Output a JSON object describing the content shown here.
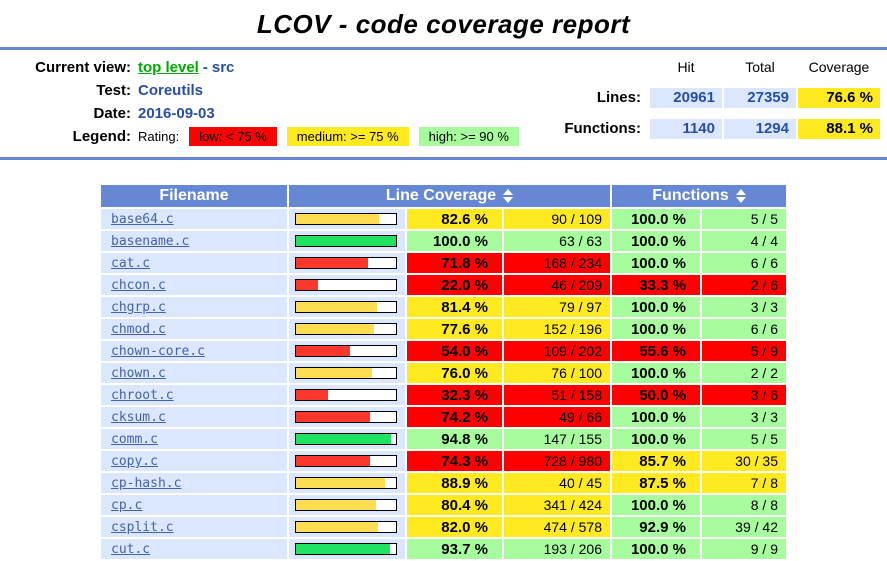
{
  "title": "LCOV - code coverage report",
  "header": {
    "current_view": {
      "label": "Current view:",
      "link": "top level",
      "separator": "-",
      "current": "src"
    },
    "test": {
      "label": "Test:",
      "value": "Coreutils"
    },
    "date": {
      "label": "Date:",
      "value": "2016-09-03"
    },
    "legend": {
      "label": "Legend:",
      "rating_label": "Rating:",
      "items": [
        {
          "text": "low: < 75 %",
          "level": "low",
          "color": "#FF0000"
        },
        {
          "text": "medium: >= 75 %",
          "level": "medium",
          "color": "#FFEA20"
        },
        {
          "text": "high: >= 90 %",
          "level": "high",
          "color": "#A7FC9D"
        }
      ]
    },
    "summary": {
      "col_hit": "Hit",
      "col_total": "Total",
      "col_coverage": "Coverage",
      "lines": {
        "label": "Lines:",
        "hit": "20961",
        "total": "27359",
        "coverage": "76.6 %"
      },
      "functions": {
        "label": "Functions:",
        "hit": "1140",
        "total": "1294",
        "coverage": "88.1 %"
      }
    }
  },
  "table": {
    "columns": {
      "filename": "Filename",
      "line_coverage": "Line Coverage",
      "functions": "Functions"
    },
    "thresholds": {
      "medium": 75,
      "high": 90
    },
    "rows": [
      {
        "file": "base64.c",
        "line_pct": 82.6,
        "line_pct_text": "82.6 %",
        "line_ratio": "90 / 109",
        "func_pct": 100.0,
        "func_pct_text": "100.0 %",
        "func_ratio": "5 / 5"
      },
      {
        "file": "basename.c",
        "line_pct": 100.0,
        "line_pct_text": "100.0 %",
        "line_ratio": "63 / 63",
        "func_pct": 100.0,
        "func_pct_text": "100.0 %",
        "func_ratio": "4 / 4"
      },
      {
        "file": "cat.c",
        "line_pct": 71.8,
        "line_pct_text": "71.8 %",
        "line_ratio": "168 / 234",
        "func_pct": 100.0,
        "func_pct_text": "100.0 %",
        "func_ratio": "6 / 6"
      },
      {
        "file": "chcon.c",
        "line_pct": 22.0,
        "line_pct_text": "22.0 %",
        "line_ratio": "46 / 209",
        "func_pct": 33.3,
        "func_pct_text": "33.3 %",
        "func_ratio": "2 / 6"
      },
      {
        "file": "chgrp.c",
        "line_pct": 81.4,
        "line_pct_text": "81.4 %",
        "line_ratio": "79 / 97",
        "func_pct": 100.0,
        "func_pct_text": "100.0 %",
        "func_ratio": "3 / 3"
      },
      {
        "file": "chmod.c",
        "line_pct": 77.6,
        "line_pct_text": "77.6 %",
        "line_ratio": "152 / 196",
        "func_pct": 100.0,
        "func_pct_text": "100.0 %",
        "func_ratio": "6 / 6"
      },
      {
        "file": "chown-core.c",
        "line_pct": 54.0,
        "line_pct_text": "54.0 %",
        "line_ratio": "109 / 202",
        "func_pct": 55.6,
        "func_pct_text": "55.6 %",
        "func_ratio": "5 / 9"
      },
      {
        "file": "chown.c",
        "line_pct": 76.0,
        "line_pct_text": "76.0 %",
        "line_ratio": "76 / 100",
        "func_pct": 100.0,
        "func_pct_text": "100.0 %",
        "func_ratio": "2 / 2"
      },
      {
        "file": "chroot.c",
        "line_pct": 32.3,
        "line_pct_text": "32.3 %",
        "line_ratio": "51 / 158",
        "func_pct": 50.0,
        "func_pct_text": "50.0 %",
        "func_ratio": "3 / 6"
      },
      {
        "file": "cksum.c",
        "line_pct": 74.2,
        "line_pct_text": "74.2 %",
        "line_ratio": "49 / 66",
        "func_pct": 100.0,
        "func_pct_text": "100.0 %",
        "func_ratio": "3 / 3"
      },
      {
        "file": "comm.c",
        "line_pct": 94.8,
        "line_pct_text": "94.8 %",
        "line_ratio": "147 / 155",
        "func_pct": 100.0,
        "func_pct_text": "100.0 %",
        "func_ratio": "5 / 5"
      },
      {
        "file": "copy.c",
        "line_pct": 74.3,
        "line_pct_text": "74.3 %",
        "line_ratio": "728 / 980",
        "func_pct": 85.7,
        "func_pct_text": "85.7 %",
        "func_ratio": "30 / 35"
      },
      {
        "file": "cp-hash.c",
        "line_pct": 88.9,
        "line_pct_text": "88.9 %",
        "line_ratio": "40 / 45",
        "func_pct": 87.5,
        "func_pct_text": "87.5 %",
        "func_ratio": "7 / 8"
      },
      {
        "file": "cp.c",
        "line_pct": 80.4,
        "line_pct_text": "80.4 %",
        "line_ratio": "341 / 424",
        "func_pct": 100.0,
        "func_pct_text": "100.0 %",
        "func_ratio": "8 / 8"
      },
      {
        "file": "csplit.c",
        "line_pct": 82.0,
        "line_pct_text": "82.0 %",
        "line_ratio": "474 / 578",
        "func_pct": 92.9,
        "func_pct_text": "92.9 %",
        "func_ratio": "39 / 42"
      },
      {
        "file": "cut.c",
        "line_pct": 93.7,
        "line_pct_text": "93.7 %",
        "line_ratio": "193 / 206",
        "func_pct": 100.0,
        "func_pct_text": "100.0 %",
        "func_ratio": "9 / 9"
      }
    ]
  },
  "colors": {
    "header_bg": "#6688D4",
    "row_bg": "#DAE7FE",
    "value_blue": "#284FA8",
    "link_green": "#00AB00",
    "file_link_blue": "#4563A8",
    "cell": {
      "low": "#FF0000",
      "medium": "#FFEA20",
      "high": "#A7FC9D"
    },
    "bar": {
      "low": "#FC382C",
      "medium": "#FFDC51",
      "high": "#21E362"
    }
  }
}
